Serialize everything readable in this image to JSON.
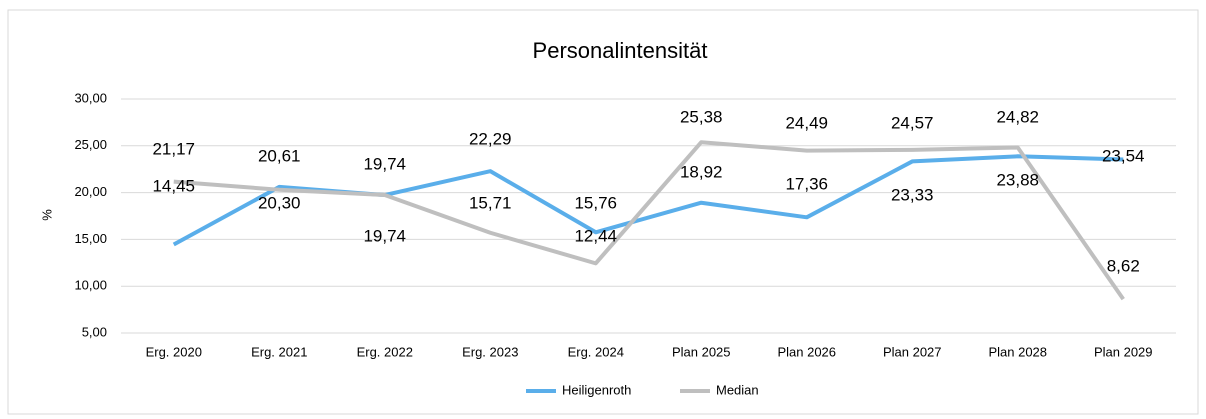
{
  "chart_data": {
    "type": "line",
    "title": "Personalintensität",
    "y_label": "%",
    "categories": [
      "Erg. 2020",
      "Erg. 2021",
      "Erg. 2022",
      "Erg. 2023",
      "Erg. 2024",
      "Plan 2025",
      "Plan 2026",
      "Plan 2027",
      "Plan 2028",
      "Plan 2029"
    ],
    "series": [
      {
        "name": "Heiligenroth",
        "color": "#5aaeea",
        "values": [
          14.45,
          20.61,
          19.74,
          22.29,
          15.76,
          18.92,
          17.36,
          23.33,
          23.88,
          23.54
        ],
        "value_labels": [
          "14,45",
          "20,61",
          "19,74",
          "22,29",
          "15,76",
          "18,92",
          "17,36",
          "23,33",
          "23,88",
          "23,54"
        ]
      },
      {
        "name": "Median",
        "color": "#bfbfbf",
        "values": [
          21.17,
          20.3,
          19.74,
          15.71,
          12.44,
          25.38,
          24.49,
          24.57,
          24.82,
          8.62
        ],
        "value_labels": [
          "21,17",
          "20,30",
          "19,74",
          "15,71",
          "12,44",
          "25,38",
          "24,49",
          "24,57",
          "24,82",
          "8,62"
        ]
      }
    ],
    "ylim": [
      5,
      30
    ],
    "yticks": [
      {
        "value": 5,
        "label": "5,00"
      },
      {
        "value": 10,
        "label": "10,00"
      },
      {
        "value": 15,
        "label": "15,00"
      },
      {
        "value": 20,
        "label": "20,00"
      },
      {
        "value": 25,
        "label": "25,00"
      },
      {
        "value": 30,
        "label": "30,00"
      }
    ],
    "grid": true,
    "legend": "bottom"
  }
}
